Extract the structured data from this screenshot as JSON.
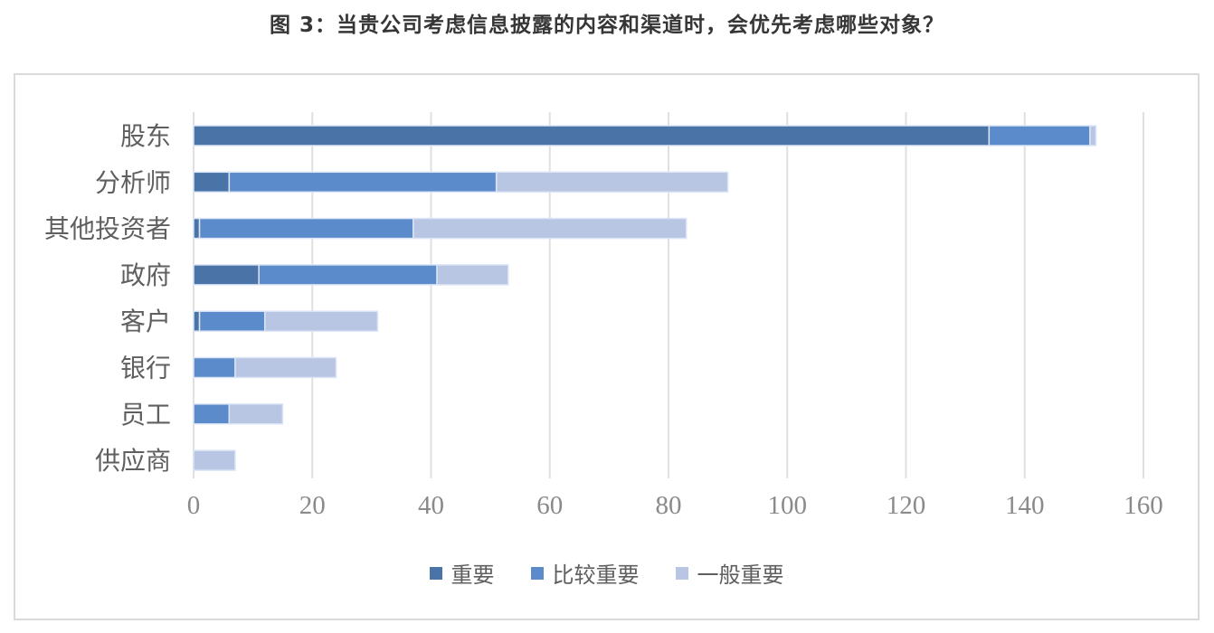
{
  "title": "图 3：当贵公司考虑信息披露的内容和渠道时，会优先考虑哪些对象？",
  "chart_data": {
    "type": "bar",
    "orientation": "horizontal",
    "stacked": true,
    "title": "图 3：当贵公司考虑信息披露的内容和渠道时，会优先考虑哪些对象？",
    "categories": [
      "股东",
      "分析师",
      "其他投资者",
      "政府",
      "客户",
      "银行",
      "员工",
      "供应商"
    ],
    "series": [
      {
        "name": "重要",
        "color": "#4a74a8",
        "values": [
          134,
          6,
          1,
          11,
          1,
          0,
          0,
          0
        ]
      },
      {
        "name": "比较重要",
        "color": "#5b8bca",
        "values": [
          17,
          45,
          36,
          30,
          11,
          7,
          6,
          0
        ]
      },
      {
        "name": "一般重要",
        "color": "#b8c6e4",
        "values": [
          1,
          39,
          46,
          12,
          19,
          17,
          9,
          7
        ]
      }
    ],
    "totals": [
      152,
      90,
      83,
      53,
      31,
      24,
      15,
      7
    ],
    "x_ticks": [
      0,
      20,
      40,
      60,
      80,
      100,
      120,
      140,
      160
    ],
    "xlim": [
      0,
      160
    ],
    "xlabel": "",
    "ylabel": "",
    "grid": "vertical",
    "legend_position": "bottom"
  },
  "colors": {
    "series_important": "#4a74a8",
    "series_fairly_important": "#5b8bca",
    "series_generally_important": "#b8c6e4",
    "gridline": "#e0e0e0",
    "frame_border": "#dadada",
    "tick_text": "#8a8a8a",
    "label_text": "#5f5f5f",
    "title_text": "#363636"
  }
}
